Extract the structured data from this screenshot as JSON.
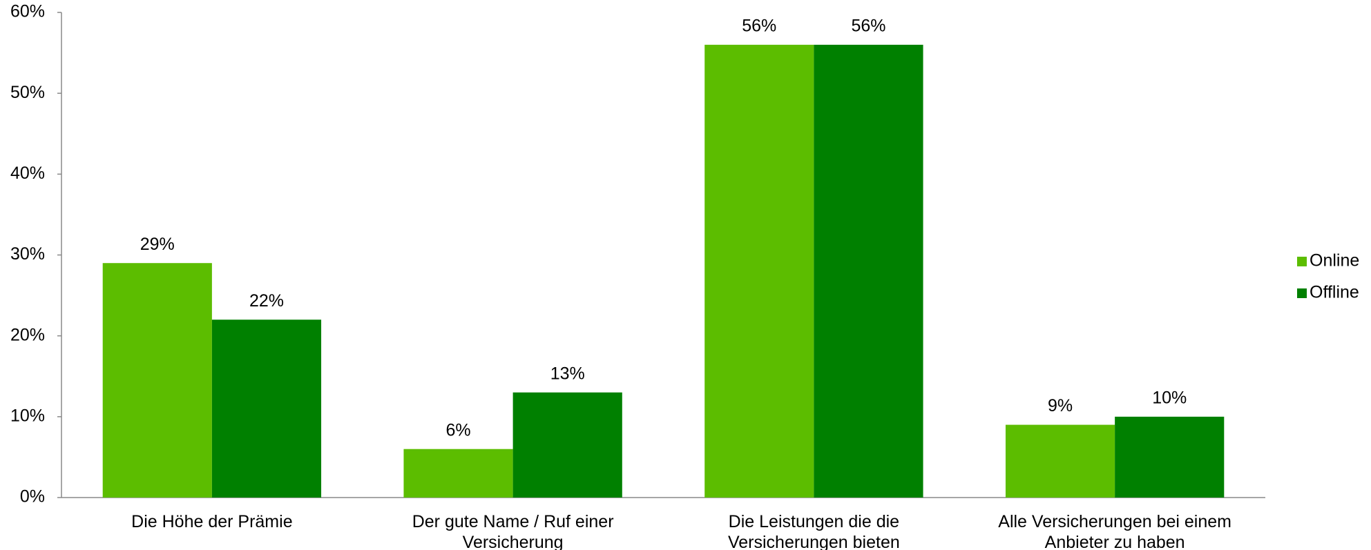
{
  "chart_data": {
    "type": "bar",
    "categories": [
      "Die Höhe der Prämie",
      "Der gute Name / Ruf einer Versicherung",
      "Die Leistungen die die Versicherungen bieten",
      "Alle Versicherungen bei einem Anbieter zu haben"
    ],
    "series": [
      {
        "name": "Online",
        "color": "#5cbd00",
        "values": [
          29,
          6,
          56,
          9
        ],
        "value_labels": [
          "29%",
          "6%",
          "56%",
          "9%"
        ]
      },
      {
        "name": "Offline",
        "color": "#008000",
        "values": [
          22,
          13,
          56,
          10
        ],
        "value_labels": [
          "22%",
          "13%",
          "56%",
          "10%"
        ]
      }
    ],
    "ylim": [
      0,
      60
    ],
    "yticks": [
      {
        "value": 0,
        "label": "0%"
      },
      {
        "value": 10,
        "label": "10%"
      },
      {
        "value": 20,
        "label": "20%"
      },
      {
        "value": 30,
        "label": "30%"
      },
      {
        "value": 40,
        "label": "40%"
      },
      {
        "value": 50,
        "label": "50%"
      },
      {
        "value": 60,
        "label": "60%"
      }
    ],
    "legend": "right",
    "grid": false
  }
}
